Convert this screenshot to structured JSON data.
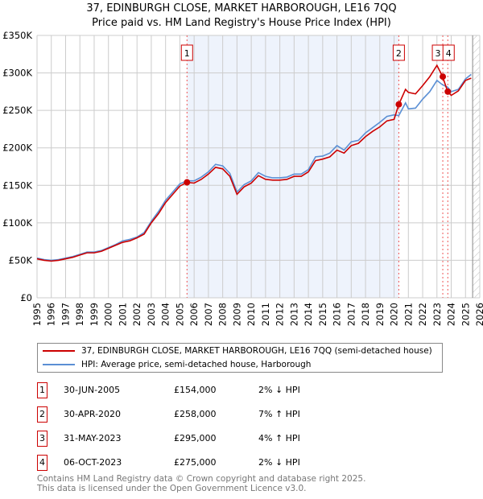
{
  "title": "37, EDINBURGH CLOSE, MARKET HARBOROUGH, LE16 7QQ",
  "subtitle": "Price paid vs. HM Land Registry's House Price Index (HPI)",
  "chart_data": {
    "type": "line",
    "xlim": [
      1995,
      2026
    ],
    "ylim": [
      0,
      350000
    ],
    "yticks": [
      0,
      50000,
      100000,
      150000,
      200000,
      250000,
      300000,
      350000
    ],
    "ytick_labels": [
      "£0",
      "£50K",
      "£100K",
      "£150K",
      "£200K",
      "£250K",
      "£300K",
      "£350K"
    ],
    "xticks": [
      1995,
      1996,
      1997,
      1998,
      1999,
      2000,
      2001,
      2002,
      2003,
      2004,
      2005,
      2006,
      2007,
      2008,
      2009,
      2010,
      2011,
      2012,
      2013,
      2014,
      2015,
      2016,
      2017,
      2018,
      2019,
      2020,
      2021,
      2022,
      2023,
      2024,
      2025,
      2026
    ],
    "shaded_period": [
      2005.5,
      2020.33
    ],
    "forecast_start": 2025.5,
    "series": [
      {
        "name": "37, EDINBURGH CLOSE, MARKET HARBOROUGH, LE16 7QQ (semi-detached house)",
        "color": "#cc0000",
        "x": [
          1995,
          1995.5,
          1996,
          1996.5,
          1997,
          1997.5,
          1998,
          1998.5,
          1999,
          1999.5,
          2000,
          2000.5,
          2001,
          2001.5,
          2002,
          2002.5,
          2003,
          2003.5,
          2004,
          2004.5,
          2005,
          2005.5,
          2006,
          2006.5,
          2007,
          2007.5,
          2008,
          2008.5,
          2009,
          2009.5,
          2010,
          2010.5,
          2011,
          2011.5,
          2012,
          2012.5,
          2013,
          2013.5,
          2014,
          2014.5,
          2015,
          2015.5,
          2016,
          2016.5,
          2017,
          2017.5,
          2018,
          2018.5,
          2019,
          2019.5,
          2020,
          2020.33,
          2020.8,
          2021,
          2021.5,
          2022,
          2022.5,
          2023,
          2023.4,
          2023.75,
          2024,
          2024.5,
          2025,
          2025.4
        ],
        "y": [
          52000,
          50000,
          49000,
          50000,
          52000,
          54000,
          57000,
          60000,
          60000,
          62000,
          66000,
          70000,
          74000,
          76000,
          80000,
          85000,
          100000,
          112000,
          127000,
          138000,
          149000,
          154000,
          153000,
          158000,
          165000,
          174000,
          172000,
          162000,
          138000,
          148000,
          153000,
          163000,
          158000,
          157000,
          157000,
          158000,
          162000,
          162000,
          168000,
          183000,
          185000,
          188000,
          197000,
          193000,
          203000,
          206000,
          215000,
          222000,
          228000,
          236000,
          238000,
          258000,
          278000,
          274000,
          272000,
          283000,
          295000,
          310000,
          295000,
          275000,
          270000,
          276000,
          290000,
          293000
        ]
      },
      {
        "name": "HPI: Average price, semi-detached house, Harborough",
        "color": "#5b8fd4",
        "x": [
          1995,
          1995.5,
          1996,
          1996.5,
          1997,
          1997.5,
          1998,
          1998.5,
          1999,
          1999.5,
          2000,
          2000.5,
          2001,
          2001.5,
          2002,
          2002.5,
          2003,
          2003.5,
          2004,
          2004.5,
          2005,
          2005.5,
          2006,
          2006.5,
          2007,
          2007.5,
          2008,
          2008.5,
          2009,
          2009.5,
          2010,
          2010.5,
          2011,
          2011.5,
          2012,
          2012.5,
          2013,
          2013.5,
          2014,
          2014.5,
          2015,
          2015.5,
          2016,
          2016.5,
          2017,
          2017.5,
          2018,
          2018.5,
          2019,
          2019.5,
          2020,
          2020.33,
          2020.8,
          2021,
          2021.5,
          2022,
          2022.5,
          2023,
          2023.4,
          2023.75,
          2024,
          2024.5,
          2025,
          2025.4
        ],
        "y": [
          53000,
          51000,
          50000,
          51000,
          53000,
          55000,
          58000,
          61000,
          61000,
          63000,
          67000,
          71000,
          76000,
          78000,
          81000,
          87000,
          102000,
          115000,
          130000,
          141000,
          152000,
          156000,
          156000,
          161000,
          168000,
          178000,
          176000,
          166000,
          141000,
          151000,
          156000,
          167000,
          162000,
          160000,
          160000,
          161000,
          165000,
          165000,
          171000,
          188000,
          189000,
          193000,
          203000,
          197000,
          208000,
          210000,
          220000,
          227000,
          234000,
          242000,
          244000,
          243000,
          260000,
          252000,
          253000,
          265000,
          275000,
          290000,
          284000,
          281000,
          275000,
          278000,
          292000,
          298000
        ]
      }
    ],
    "sales": [
      {
        "label": "1",
        "x": 2005.5,
        "y": 154000
      },
      {
        "label": "2",
        "x": 2020.33,
        "y": 258000
      },
      {
        "label": "3",
        "x": 2023.41,
        "y": 295000
      },
      {
        "label": "4",
        "x": 2023.76,
        "y": 275000
      }
    ]
  },
  "legend": [
    "37, EDINBURGH CLOSE, MARKET HARBOROUGH, LE16 7QQ (semi-detached house)",
    "HPI: Average price, semi-detached house, Harborough"
  ],
  "transactions": [
    {
      "num": "1",
      "date": "30-JUN-2005",
      "price": "£154,000",
      "hpi": "2% ↓ HPI"
    },
    {
      "num": "2",
      "date": "30-APR-2020",
      "price": "£258,000",
      "hpi": "7% ↑ HPI"
    },
    {
      "num": "3",
      "date": "31-MAY-2023",
      "price": "£295,000",
      "hpi": "4% ↑ HPI"
    },
    {
      "num": "4",
      "date": "06-OCT-2023",
      "price": "£275,000",
      "hpi": "2% ↓ HPI"
    }
  ],
  "footer": [
    "Contains HM Land Registry data © Crown copyright and database right 2025.",
    "This data is licensed under the Open Government Licence v3.0."
  ]
}
